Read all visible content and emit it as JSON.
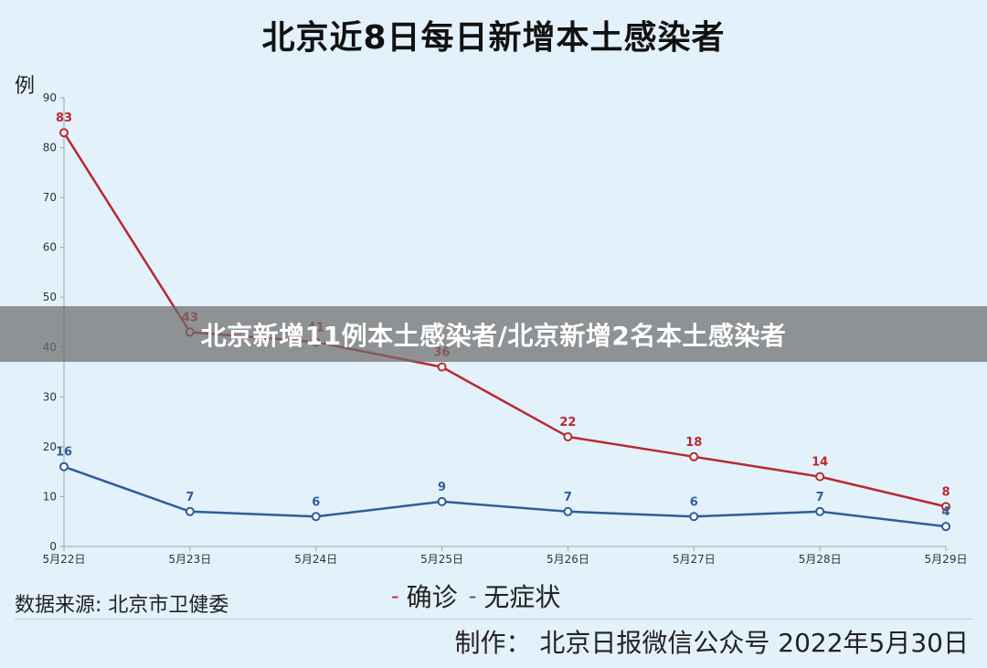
{
  "title": "北京近8日每日新增本土感染者",
  "unit": "例",
  "banner": "北京新增11例本土感染者/北京新增2名本土感染者",
  "source": "数据来源: 北京市卫健委",
  "credit": "制作：  北京日报微信公众号 2022年5月30日",
  "legend": [
    {
      "dash": "-",
      "label": "确诊",
      "color": "#b8292f"
    },
    {
      "dash": "-",
      "label": "无症状",
      "color": "#2f5d9a"
    }
  ],
  "chart_data": {
    "type": "line",
    "x": [
      "5月22日",
      "5月23日",
      "5月24日",
      "5月25日",
      "5月26日",
      "5月27日",
      "5月28日",
      "5月29日"
    ],
    "ylim": [
      0,
      90
    ],
    "yticks": [
      0,
      10,
      20,
      30,
      40,
      50,
      60,
      70,
      80,
      90
    ],
    "series": [
      {
        "name": "确诊",
        "color": "#b8292f",
        "values": [
          83,
          43,
          41,
          36,
          22,
          18,
          14,
          8
        ]
      },
      {
        "name": "无症状",
        "color": "#2f5d9a",
        "values": [
          16,
          7,
          6,
          9,
          7,
          6,
          7,
          4
        ]
      }
    ]
  }
}
